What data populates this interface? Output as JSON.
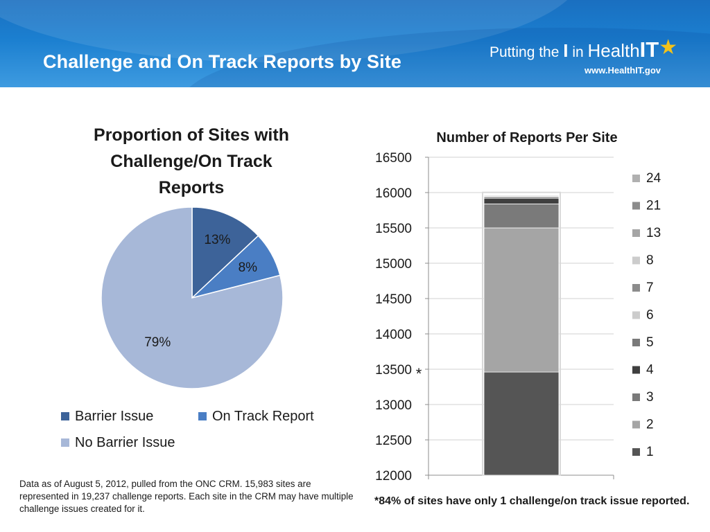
{
  "header": {
    "title": "Challenge and On Track Reports by Site",
    "logo_part1": "Putting the ",
    "logo_part2": "I",
    "logo_part3": " in ",
    "logo_part4": "Health",
    "logo_part5": "IT",
    "logo_url": "www.HealthIT.gov"
  },
  "chart_data": [
    {
      "type": "pie",
      "title": "Proportion of Sites with Challenge/On Track Reports",
      "title_lines": [
        "Proportion of Sites with",
        "Challenge/On Track",
        "Reports"
      ],
      "categories": [
        "Barrier Issue",
        "On Track Report",
        "No Barrier Issue"
      ],
      "values": [
        13,
        8,
        79
      ],
      "labels": [
        "13%",
        "8%",
        "79%"
      ],
      "colors": [
        "#3d6399",
        "#4a7ec4",
        "#a7b8d8"
      ],
      "legend_position": "bottom"
    },
    {
      "type": "bar",
      "stacked": true,
      "title": "Number of Reports Per Site",
      "ylim": [
        12000,
        16500
      ],
      "yticks": [
        "16500",
        "16000",
        "15500",
        "15000",
        "14500",
        "14000",
        "13500",
        "13000",
        "12500",
        "12000"
      ],
      "grid": true,
      "legend_position": "right",
      "series": [
        {
          "name": "1",
          "value": 13460,
          "color": "#555555"
        },
        {
          "name": "2",
          "value": 2040,
          "color": "#a5a5a5"
        },
        {
          "name": "3",
          "value": 340,
          "color": "#7a7a7a"
        },
        {
          "name": "4",
          "value": 80,
          "color": "#3f3f3f"
        },
        {
          "name": "5",
          "value": 20,
          "color": "#7a7a7a"
        },
        {
          "name": "6",
          "value": 10,
          "color": "#cccccc"
        },
        {
          "name": "7",
          "value": 10,
          "color": "#8c8c8c"
        },
        {
          "name": "8",
          "value": 8,
          "color": "#cccccc"
        },
        {
          "name": "13",
          "value": 5,
          "color": "#a5a5a5"
        },
        {
          "name": "21",
          "value": 5,
          "color": "#8c8c8c"
        },
        {
          "name": "24",
          "value": 5,
          "color": "#b0b0b0"
        }
      ],
      "annotation": "*"
    }
  ],
  "footnote": "Data as of  August 5, 2012, pulled from the ONC CRM. 15,983 sites are represented in 19,237 challenge reports. Each site in the CRM may have multiple challenge issues created for it.",
  "bar_note": "*84% of sites have only 1 challenge/on track issue reported."
}
